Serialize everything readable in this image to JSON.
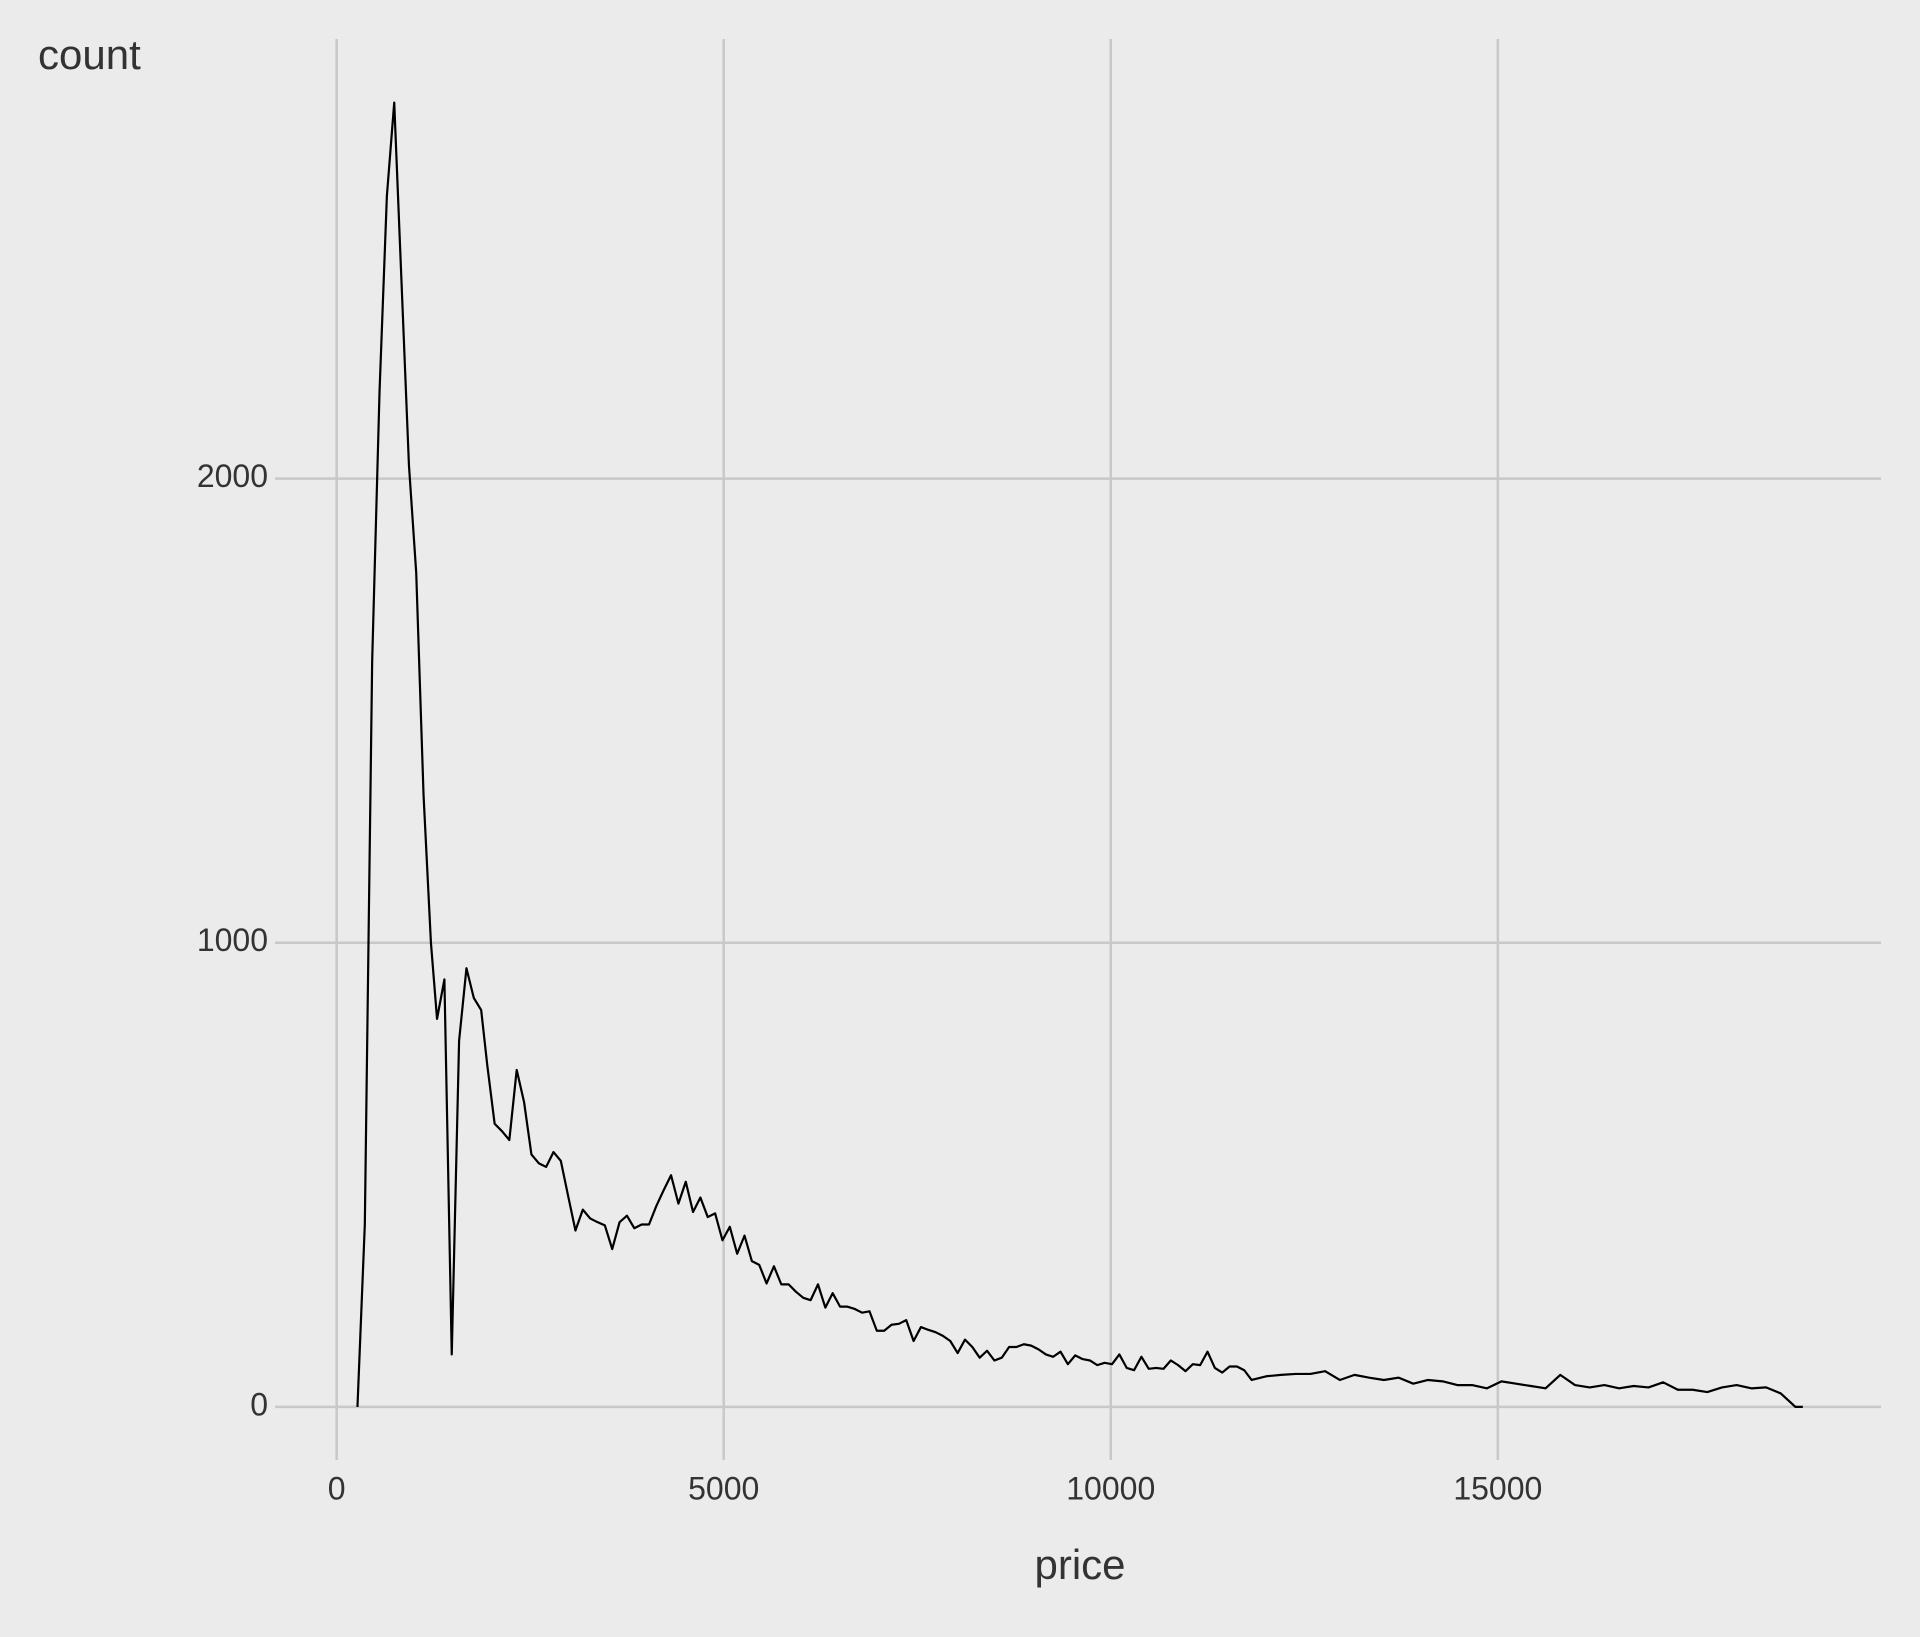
{
  "chart_data": {
    "type": "line",
    "x_label": "price",
    "y_label": "count",
    "color": "#000000",
    "grid": true,
    "xlim": [
      -680,
      19950
    ],
    "ylim": [
      -95,
      2947
    ],
    "xticks": [
      0,
      5000,
      10000,
      15000
    ],
    "yticks": [
      0,
      1000,
      2000
    ],
    "x": [
      269,
      364,
      459,
      554,
      649,
      744,
      934,
      1028,
      1123,
      1218,
      1297,
      1392,
      1487,
      1582,
      1677,
      1772,
      1867,
      1946,
      2041,
      2136,
      2231,
      2326,
      2421,
      2516,
      2611,
      2706,
      2801,
      2896,
      2991,
      3085,
      3180,
      3275,
      3370,
      3465,
      3560,
      3655,
      3750,
      3845,
      3940,
      4035,
      4130,
      4225,
      4320,
      4415,
      4510,
      4604,
      4699,
      4794,
      4889,
      4984,
      5079,
      5174,
      5269,
      5364,
      5459,
      5554,
      5649,
      5744,
      5839,
      5934,
      6028,
      6123,
      6218,
      6313,
      6408,
      6503,
      6598,
      6693,
      6788,
      6883,
      6978,
      7073,
      7168,
      7263,
      7358,
      7453,
      7548,
      7643,
      7737,
      7832,
      7927,
      8022,
      8117,
      8212,
      8307,
      8402,
      8497,
      8592,
      8687,
      8782,
      8877,
      8972,
      9067,
      9162,
      9256,
      9351,
      9446,
      9541,
      9636,
      9731,
      9826,
      9921,
      10016,
      10111,
      10206,
      10301,
      10396,
      10491,
      10586,
      10681,
      10775,
      10870,
      10965,
      11060,
      11155,
      11250,
      11345,
      11440,
      11535,
      11630,
      11725,
      11820,
      12009,
      12199,
      12389,
      12579,
      12769,
      12959,
      13149,
      13339,
      13528,
      13718,
      13908,
      14098,
      14288,
      14478,
      14668,
      14858,
      15047,
      15237,
      15427,
      15617,
      15807,
      15997,
      16187,
      16377,
      16566,
      16756,
      16946,
      17136,
      17326,
      17516,
      17706,
      17896,
      18085,
      18275,
      18465,
      18655,
      18845,
      18940
    ],
    "values": [
      0,
      393,
      1607,
      2187,
      2609,
      2810,
      2029,
      1797,
      1317,
      1000,
      836,
      921,
      113,
      789,
      945,
      881,
      855,
      736,
      610,
      594,
      575,
      726,
      657,
      544,
      525,
      517,
      549,
      530,
      454,
      380,
      425,
      406,
      398,
      391,
      340,
      398,
      412,
      385,
      393,
      393,
      433,
      467,
      499,
      438,
      485,
      420,
      451,
      409,
      417,
      359,
      388,
      330,
      369,
      314,
      306,
      266,
      303,
      264,
      264,
      248,
      235,
      230,
      264,
      214,
      245,
      216,
      216,
      211,
      203,
      206,
      164,
      164,
      177,
      179,
      187,
      142,
      172,
      166,
      161,
      153,
      142,
      116,
      145,
      129,
      106,
      121,
      100,
      106,
      129,
      129,
      135,
      132,
      124,
      113,
      108,
      119,
      92,
      111,
      103,
      100,
      90,
      95,
      92,
      113,
      84,
      79,
      108,
      82,
      84,
      82,
      100,
      90,
      77,
      92,
      90,
      119,
      84,
      74,
      87,
      87,
      79,
      58,
      66,
      69,
      71,
      71,
      77,
      58,
      69,
      63,
      58,
      63,
      50,
      58,
      55,
      47,
      47,
      40,
      55,
      50,
      45,
      40,
      69,
      47,
      42,
      47,
      40,
      45,
      42,
      53,
      37,
      37,
      32,
      42,
      47,
      40,
      42,
      29,
      0,
      0
    ]
  }
}
